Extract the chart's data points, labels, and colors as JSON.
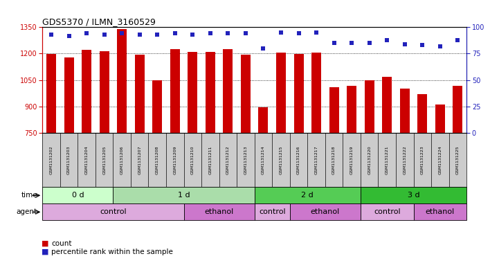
{
  "title": "GDS5370 / ILMN_3160529",
  "samples": [
    "GSM1131202",
    "GSM1131203",
    "GSM1131204",
    "GSM1131205",
    "GSM1131206",
    "GSM1131207",
    "GSM1131208",
    "GSM1131209",
    "GSM1131210",
    "GSM1131211",
    "GSM1131212",
    "GSM1131213",
    "GSM1131214",
    "GSM1131215",
    "GSM1131216",
    "GSM1131217",
    "GSM1131218",
    "GSM1131219",
    "GSM1131220",
    "GSM1131221",
    "GSM1131222",
    "GSM1131223",
    "GSM1131224",
    "GSM1131225"
  ],
  "counts": [
    1198,
    1180,
    1223,
    1215,
    1338,
    1195,
    1047,
    1225,
    1210,
    1208,
    1225,
    1195,
    897,
    1205,
    1196,
    1204,
    1010,
    1015,
    1050,
    1068,
    1000,
    970,
    910,
    1016
  ],
  "percentiles": [
    93,
    92,
    94,
    93,
    94,
    93,
    93,
    94,
    93,
    94,
    94,
    94,
    80,
    95,
    94,
    95,
    85,
    85,
    85,
    88,
    84,
    83,
    82,
    88
  ],
  "ylim_left": [
    750,
    1350
  ],
  "ylim_right": [
    0,
    100
  ],
  "yticks_left": [
    750,
    900,
    1050,
    1200,
    1350
  ],
  "yticks_right": [
    0,
    25,
    50,
    75,
    100
  ],
  "bar_color": "#cc0000",
  "dot_color": "#2222bb",
  "left_axis_color": "#cc0000",
  "right_axis_color": "#2222bb",
  "time_groups": [
    {
      "label": "0 d",
      "start": 0,
      "end": 4,
      "color": "#ccffcc"
    },
    {
      "label": "1 d",
      "start": 4,
      "end": 12,
      "color": "#aaddaa"
    },
    {
      "label": "2 d",
      "start": 12,
      "end": 18,
      "color": "#55cc55"
    },
    {
      "label": "3 d",
      "start": 18,
      "end": 24,
      "color": "#33bb33"
    }
  ],
  "agent_groups": [
    {
      "label": "control",
      "start": 0,
      "end": 8,
      "color": "#ddaadd"
    },
    {
      "label": "ethanol",
      "start": 8,
      "end": 12,
      "color": "#cc77cc"
    },
    {
      "label": "control",
      "start": 12,
      "end": 14,
      "color": "#ddaadd"
    },
    {
      "label": "ethanol",
      "start": 14,
      "end": 18,
      "color": "#cc77cc"
    },
    {
      "label": "control",
      "start": 18,
      "end": 21,
      "color": "#ddaadd"
    },
    {
      "label": "ethanol",
      "start": 21,
      "end": 24,
      "color": "#cc77cc"
    }
  ],
  "legend_count_color": "#cc0000",
  "legend_dot_color": "#2222bb",
  "sample_label_bg": "#cccccc",
  "gridline_y": [
    900,
    1050,
    1200
  ]
}
